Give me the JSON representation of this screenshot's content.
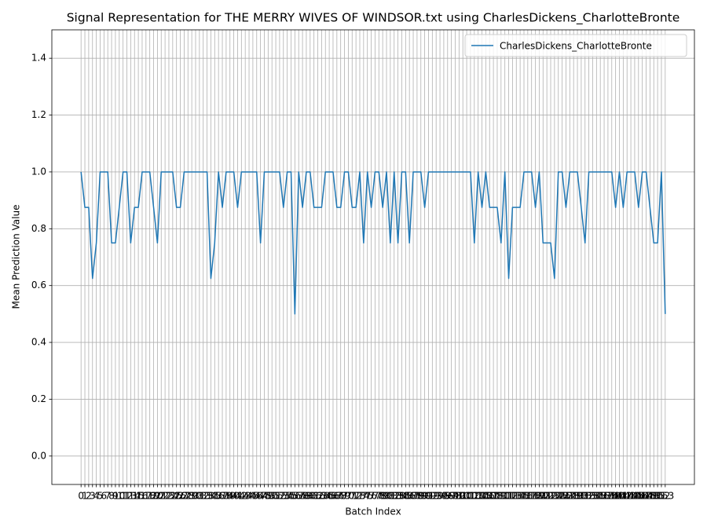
{
  "chart_data": {
    "type": "line",
    "title": "Signal Representation for THE MERRY WIVES OF WINDSOR.txt using CharlesDickens_CharlotteBronte",
    "xlabel": "Batch Index",
    "ylabel": "Mean Prediction Value",
    "x": [
      0,
      1,
      2,
      3,
      4,
      5,
      6,
      7,
      8,
      9,
      10,
      11,
      12,
      13,
      14,
      15,
      16,
      17,
      18,
      19,
      20,
      21,
      22,
      23,
      24,
      25,
      26,
      27,
      28,
      29,
      30,
      31,
      32,
      33,
      34,
      35,
      36,
      37,
      38,
      39,
      40,
      41,
      42,
      43,
      44,
      45,
      46,
      47,
      48,
      49,
      50,
      51,
      52,
      53,
      54,
      55,
      56,
      57,
      58,
      59,
      60,
      61,
      62,
      63,
      64,
      65,
      66,
      67,
      68,
      69,
      70,
      71,
      72,
      73,
      74,
      75,
      76,
      77,
      78,
      79,
      80,
      81,
      82,
      83,
      84,
      85,
      86,
      87,
      88,
      89,
      90,
      91,
      92,
      93,
      94,
      95,
      96,
      97,
      98,
      99,
      100,
      101,
      102,
      103,
      104,
      105,
      106,
      107,
      108,
      109,
      110,
      111,
      112,
      113,
      114,
      115,
      116,
      117,
      118,
      119,
      120,
      121,
      122,
      123,
      124,
      125,
      126,
      127,
      128,
      129,
      130,
      131,
      132,
      133,
      134,
      135,
      136,
      137,
      138,
      139,
      140,
      141,
      142,
      143,
      144,
      145,
      146,
      147,
      148,
      149,
      150,
      151,
      152,
      153
    ],
    "series": [
      {
        "name": "CharlesDickens_CharlotteBronte",
        "color": "#1f77b4",
        "values": [
          1,
          0.875,
          0.875,
          0.625,
          0.75,
          1,
          1,
          1,
          0.75,
          0.75,
          0.875,
          1,
          1,
          0.75,
          0.875,
          0.875,
          1,
          1,
          1,
          0.875,
          0.75,
          1,
          1,
          1,
          1,
          0.875,
          0.875,
          1,
          1,
          1,
          1,
          1,
          1,
          1,
          0.625,
          0.75,
          1,
          0.875,
          1,
          1,
          1,
          0.875,
          1,
          1,
          1,
          1,
          1,
          0.75,
          1,
          1,
          1,
          1,
          1,
          0.875,
          1,
          1,
          0.5,
          1,
          0.875,
          1,
          1,
          0.875,
          0.875,
          0.875,
          1,
          1,
          1,
          0.875,
          0.875,
          1,
          1,
          0.875,
          0.875,
          1,
          0.75,
          1,
          0.875,
          1,
          1,
          0.875,
          1,
          0.75,
          1,
          0.75,
          1,
          1,
          0.75,
          1,
          1,
          1,
          0.875,
          1,
          1,
          1,
          1,
          1,
          1,
          1,
          1,
          1,
          1,
          1,
          1,
          0.75,
          1,
          0.875,
          1,
          0.875,
          0.875,
          0.875,
          0.75,
          1,
          0.625,
          0.875,
          0.875,
          0.875,
          1,
          1,
          1,
          0.875,
          1,
          0.75,
          0.75,
          0.75,
          0.625,
          1,
          1,
          0.875,
          1,
          1,
          1,
          0.875,
          0.75,
          1,
          1,
          1,
          1,
          1,
          1,
          1,
          0.875,
          1,
          0.875,
          1,
          1,
          1,
          0.875,
          1,
          1,
          0.875,
          0.75,
          0.75,
          1,
          0.5
        ]
      }
    ],
    "xlim": [
      -7.65,
      160.65
    ],
    "xticks": [
      0,
      1,
      2,
      3,
      4,
      5,
      6,
      7,
      8,
      9,
      10,
      11,
      12,
      13,
      14,
      15,
      16,
      17,
      18,
      19,
      20,
      21,
      22,
      23,
      24,
      25,
      26,
      27,
      28,
      29,
      30,
      31,
      32,
      33,
      34,
      35,
      36,
      37,
      38,
      39,
      40,
      41,
      42,
      43,
      44,
      45,
      46,
      47,
      48,
      49,
      50,
      51,
      52,
      53,
      54,
      55,
      56,
      57,
      58,
      59,
      60,
      61,
      62,
      63,
      64,
      65,
      66,
      67,
      68,
      69,
      70,
      71,
      72,
      73,
      74,
      75,
      76,
      77,
      78,
      79,
      80,
      81,
      82,
      83,
      84,
      85,
      86,
      87,
      88,
      89,
      90,
      91,
      92,
      93,
      94,
      95,
      96,
      97,
      98,
      99,
      100,
      101,
      102,
      103,
      104,
      105,
      106,
      107,
      108,
      109,
      110,
      111,
      112,
      113,
      114,
      115,
      116,
      117,
      118,
      119,
      120,
      121,
      122,
      123,
      124,
      125,
      126,
      127,
      128,
      129,
      130,
      131,
      132,
      133,
      134,
      135,
      136,
      137,
      138,
      139,
      140,
      141,
      142,
      143,
      144,
      145,
      146,
      147,
      148,
      149,
      150,
      151,
      152,
      153
    ],
    "ylim": [
      -0.1,
      1.5
    ],
    "yticks": [
      {
        "value": 0,
        "label": "0.0"
      },
      0.2,
      0.4,
      0.6,
      0.8,
      {
        "value": 1,
        "label": "1.0"
      },
      1.2,
      1.4
    ],
    "grid": true,
    "legend": "upper right"
  }
}
